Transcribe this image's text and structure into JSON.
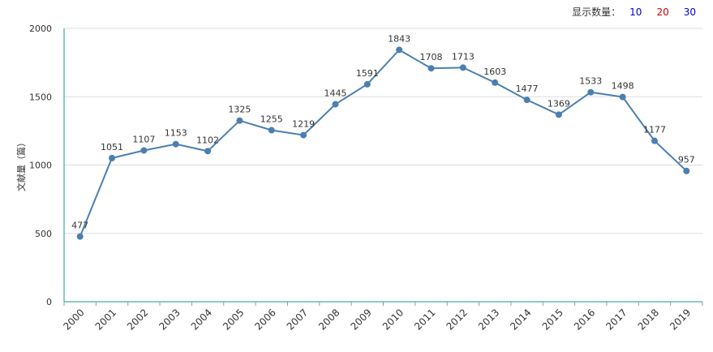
{
  "controls": {
    "label": "显示数量：",
    "options": [
      {
        "text": "10",
        "color": "#0000cc"
      },
      {
        "text": "20",
        "color": "#cc0000"
      },
      {
        "text": "30",
        "color": "#0000cc"
      }
    ]
  },
  "colors": {
    "line": "#4a7fb0",
    "point": "#4a7fb0",
    "axis": "#1a9a8f",
    "grid": "#dddddd"
  },
  "chart_data": {
    "type": "line",
    "title": "",
    "xlabel": "",
    "ylabel": "文献量（篇）",
    "ylim": [
      0,
      2000
    ],
    "yticks": [
      0,
      500,
      1000,
      1500,
      2000
    ],
    "grid": true,
    "legend": "none",
    "x": [
      "2000",
      "2001",
      "2002",
      "2003",
      "2004",
      "2005",
      "2006",
      "2007",
      "2008",
      "2009",
      "2010",
      "2011",
      "2012",
      "2013",
      "2014",
      "2015",
      "2016",
      "2017",
      "2018",
      "2019"
    ],
    "series": [
      {
        "values": [
          477,
          1051,
          1107,
          1153,
          1102,
          1325,
          1255,
          1219,
          1445,
          1591,
          1843,
          1708,
          1713,
          1603,
          1477,
          1369,
          1533,
          1498,
          1177,
          957
        ]
      }
    ]
  }
}
